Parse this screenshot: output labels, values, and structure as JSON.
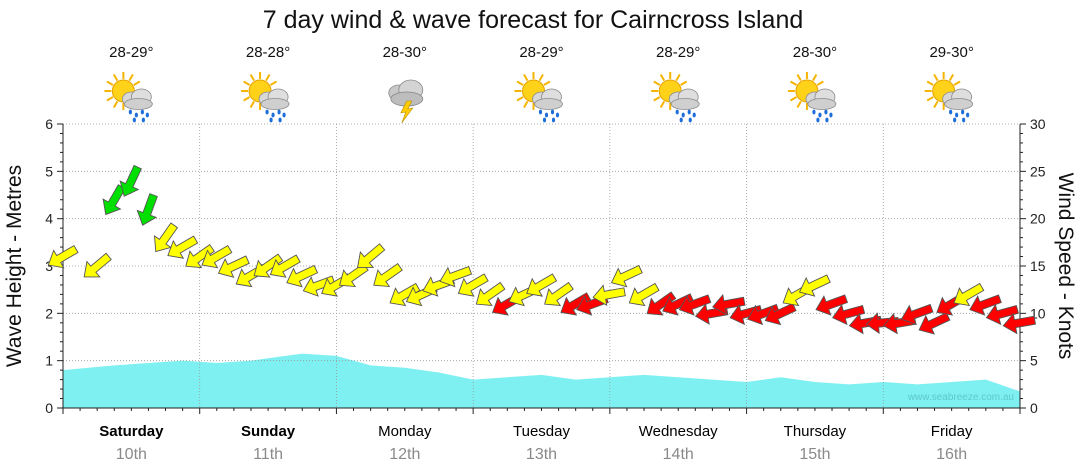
{
  "chart_data": {
    "type": "line",
    "title": "7 day wind & wave forecast for Cairncross Island",
    "ylabel": "Wave Height - Metres",
    "y2label": "Wind Speed - Knots",
    "ylim": [
      0,
      6
    ],
    "y2lim": [
      0,
      30
    ],
    "yticks": [
      "0",
      "1",
      "2",
      "3",
      "4",
      "5",
      "6"
    ],
    "y2ticks": [
      "0",
      "5",
      "10",
      "15",
      "20",
      "25",
      "30"
    ],
    "grid": true,
    "watermark": "www.seabreeze.com.au",
    "colors": {
      "wave_fill": "#7ef0f2",
      "wind_light": "#00e000",
      "wind_moderate": "#ffff00",
      "wind_strong": "#ff0000",
      "weekend_label": "#000000",
      "date_label": "#8a8a8a",
      "grid": "#999999"
    },
    "days": [
      {
        "name": "Saturday",
        "date": "10th",
        "temp": "28-29°",
        "icon": "sun-cloud-showers-icon",
        "bold": true
      },
      {
        "name": "Sunday",
        "date": "11th",
        "temp": "28-28°",
        "icon": "sun-cloud-showers-icon",
        "bold": true
      },
      {
        "name": "Monday",
        "date": "12th",
        "temp": "28-30°",
        "icon": "thunderstorm-icon",
        "bold": false
      },
      {
        "name": "Tuesday",
        "date": "13th",
        "temp": "28-29°",
        "icon": "sun-cloud-showers-icon",
        "bold": false
      },
      {
        "name": "Wednesday",
        "date": "14th",
        "temp": "28-29°",
        "icon": "sun-cloud-showers-icon",
        "bold": false
      },
      {
        "name": "Thursday",
        "date": "15th",
        "temp": "28-30°",
        "icon": "sun-cloud-showers-icon",
        "bold": false
      },
      {
        "name": "Friday",
        "date": "16th",
        "temp": "29-30°",
        "icon": "sun-cloud-showers-icon",
        "bold": false
      }
    ],
    "x_unit": "hours from start of Saturday 10th",
    "wave_height": {
      "name": "Wave Height",
      "x": [
        0,
        9,
        15,
        21,
        27,
        33,
        36,
        42,
        48,
        54,
        60,
        66,
        72,
        78,
        84,
        90,
        96,
        102,
        108,
        114,
        120,
        126,
        132,
        138,
        144,
        150,
        156,
        162,
        168
      ],
      "values": [
        0.8,
        0.9,
        0.95,
        1.0,
        0.95,
        1.0,
        1.05,
        1.15,
        1.1,
        0.9,
        0.85,
        0.75,
        0.6,
        0.65,
        0.7,
        0.6,
        0.65,
        0.7,
        0.65,
        0.6,
        0.55,
        0.65,
        0.55,
        0.5,
        0.55,
        0.5,
        0.55,
        0.6,
        0.35
      ]
    },
    "wind": {
      "name": "Wind Speed",
      "x": [
        0,
        6,
        9,
        12,
        15,
        18,
        21,
        24,
        27,
        30,
        33,
        36,
        39,
        42,
        45,
        48,
        51,
        54,
        57,
        60,
        63,
        66,
        69,
        72,
        75,
        78,
        81,
        84,
        87,
        90,
        93,
        96,
        99,
        102,
        105,
        108,
        111,
        114,
        117,
        120,
        123,
        126,
        129,
        132,
        135,
        138,
        141,
        144,
        147,
        150,
        153,
        156,
        159,
        162,
        165,
        168
      ],
      "speed_knots": [
        16,
        15,
        22,
        24,
        21,
        18,
        17,
        16,
        16,
        15,
        14,
        15,
        15,
        14,
        13,
        13,
        14,
        16,
        14,
        12,
        12,
        13,
        14,
        13,
        12,
        11,
        12,
        13,
        12,
        11,
        11,
        12,
        14,
        12,
        11,
        11,
        11,
        10,
        11,
        10,
        10,
        10,
        12,
        13,
        11,
        10,
        9,
        9,
        9,
        10,
        9,
        11,
        12,
        11,
        10,
        9
      ],
      "direction_from_deg": [
        60,
        50,
        30,
        25,
        20,
        35,
        60,
        55,
        60,
        65,
        60,
        55,
        60,
        65,
        70,
        60,
        55,
        50,
        55,
        60,
        65,
        70,
        70,
        60,
        55,
        60,
        65,
        60,
        55,
        60,
        70,
        80,
        65,
        60,
        55,
        65,
        70,
        80,
        80,
        75,
        70,
        65,
        60,
        65,
        70,
        75,
        80,
        85,
        80,
        70,
        65,
        60,
        60,
        70,
        75,
        80
      ]
    }
  }
}
